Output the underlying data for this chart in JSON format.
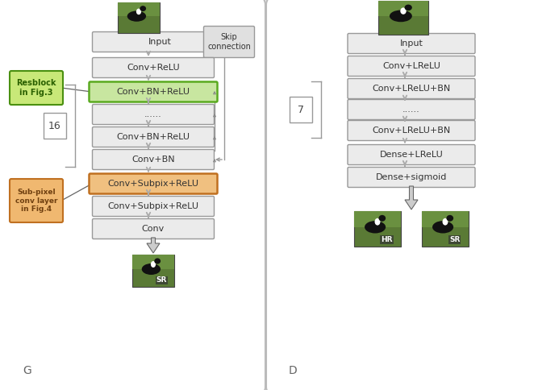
{
  "bg_color": "#f0f0f0",
  "panel_facecolor": "#ffffff",
  "panel_edgecolor": "#bbbbbb",
  "box_facecolor": "#ebebeb",
  "box_edgecolor": "#999999",
  "green_fill": "#c8e6a0",
  "green_edge": "#5aaa20",
  "orange_fill": "#f0c080",
  "orange_edge": "#c07020",
  "resblock_fill": "#c8e878",
  "resblock_edge": "#4a9010",
  "resblock_text": "#2a6000",
  "subpixel_fill": "#f0b870",
  "subpixel_edge": "#c07020",
  "subpixel_text": "#704010",
  "skip_fill": "#e0e0e0",
  "skip_edge": "#999999",
  "arrow_gray": "#aaaaaa",
  "arrow_dark": "#888888",
  "connector_color": "#999999",
  "text_color": "#333333",
  "label_G": "G",
  "label_D": "D",
  "resblock_label": "Resblock\nin Fig.3",
  "subpixel_label": "Sub-pixel\nconv layer\nin Fig.4",
  "skip_label": "Skip\nconnection",
  "num_16": "16",
  "num_7": "7",
  "G_boxes": [
    "Input",
    "Conv+ReLU",
    "Conv+BN+ReLU",
    "......",
    "Conv+BN+ReLU",
    "Conv+BN",
    "Conv+Subpix+ReLU",
    "Conv+Subpix+ReLU",
    "Conv"
  ],
  "D_boxes": [
    "Input",
    "Conv+LReLU",
    "Conv+LReLU+BN",
    "......",
    "Conv+LReLU+BN",
    "Dense+LReLU",
    "Dense+sigmoid"
  ],
  "bird_colors": [
    "#5a7a3a",
    "#3a5a20",
    "#6a8a4a"
  ],
  "grass_color": "#4a7030",
  "bird_body": "#111111",
  "bird_white": "#ffffff"
}
